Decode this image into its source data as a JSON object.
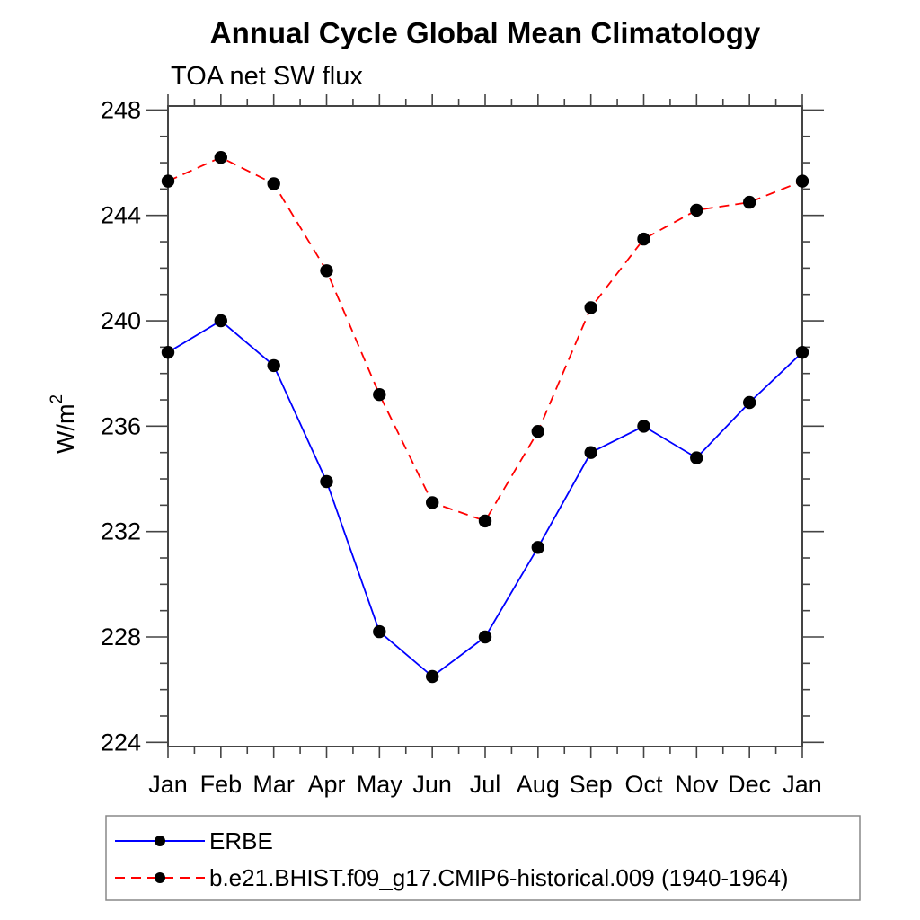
{
  "header": {
    "title": "Annual Cycle Global Mean Climatology",
    "subtitle": "TOA net SW flux"
  },
  "colors": {
    "axis": "#444444",
    "legend_border": "#888888",
    "marker": "#000000",
    "erbe_blue": "#0000ff",
    "model_red": "#ff0000",
    "background": "#ffffff"
  },
  "chart_data": {
    "type": "line",
    "title": "Annual Cycle Global Mean Climatology",
    "subtitle": "TOA net SW flux",
    "xlabel": "",
    "ylabel": "W/m²",
    "ylabel_base": "W/m",
    "ylabel_exp": "2",
    "categories": [
      "Jan",
      "Feb",
      "Mar",
      "Apr",
      "May",
      "Jun",
      "Jul",
      "Aug",
      "Sep",
      "Oct",
      "Nov",
      "Dec",
      "Jan"
    ],
    "series": [
      {
        "name": "ERBE",
        "color": "#0000ff",
        "line_style": "solid",
        "marker": "filled-black-circle",
        "values": [
          238.8,
          240.0,
          238.3,
          233.9,
          228.2,
          226.5,
          228.0,
          231.4,
          235.0,
          236.0,
          234.8,
          236.9,
          238.8
        ]
      },
      {
        "name": "b.e21.BHIST.f09_g17.CMIP6-historical.009 (1940-1964)",
        "color": "#ff0000",
        "line_style": "dashed",
        "marker": "filled-black-circle",
        "values": [
          245.3,
          246.2,
          245.2,
          241.9,
          237.2,
          233.1,
          232.4,
          235.8,
          240.5,
          243.1,
          244.2,
          244.5,
          245.3
        ]
      }
    ],
    "ylim": [
      224,
      248
    ],
    "ytick_major_step": 4,
    "ytick_minor_step": 1,
    "ytick_major_labels": [
      "224",
      "228",
      "232",
      "236",
      "240",
      "244",
      "248"
    ],
    "grid": "off",
    "legend_position": "bottom-left-box"
  }
}
